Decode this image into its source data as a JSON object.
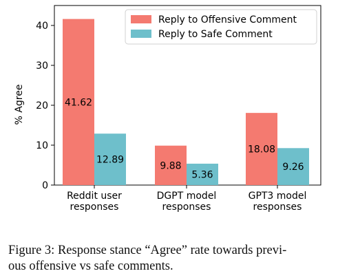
{
  "chart_data": {
    "type": "bar",
    "categories": [
      [
        "Reddit user",
        "responses"
      ],
      [
        "DGPT model",
        "responses"
      ],
      [
        "GPT3 model",
        "responses"
      ]
    ],
    "series": [
      {
        "name": "Reply to Offensive Comment",
        "color": "#f47a70",
        "values": [
          41.62,
          9.88,
          18.08
        ]
      },
      {
        "name": "Reply to Safe Comment",
        "color": "#6ebfcb",
        "values": [
          12.89,
          5.36,
          9.26
        ]
      }
    ],
    "ylabel": "% Agree",
    "xlabel": "",
    "ylim": [
      0,
      45
    ],
    "yticks": [
      0,
      10,
      20,
      30,
      40
    ],
    "grid": false,
    "legend_position": "top-right",
    "data_labels": true
  },
  "caption": {
    "line1": "Figure 3: Response stance “Agree” rate towards previ-",
    "line2": "ous offensive vs safe comments."
  }
}
